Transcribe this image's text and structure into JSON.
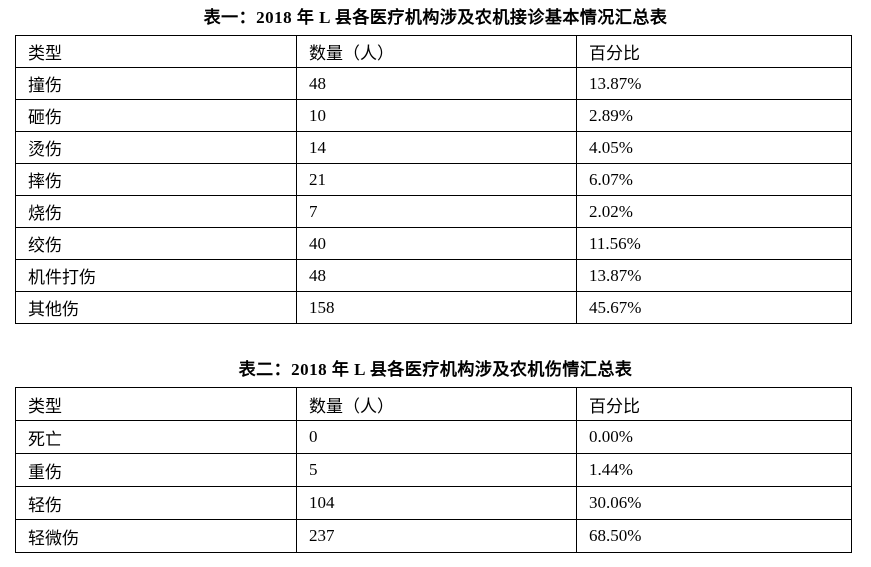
{
  "page": {
    "background_color": "#ffffff",
    "text_color": "#000000",
    "border_color": "#000000"
  },
  "tables": [
    {
      "title": "表一：2018 年 L 县各医疗机构涉及农机接诊基本情况汇总表",
      "headers": [
        "类型",
        "数量（人）",
        "百分比"
      ],
      "rows": [
        [
          "撞伤",
          "48",
          "13.87%"
        ],
        [
          "砸伤",
          "10",
          "2.89%"
        ],
        [
          "烫伤",
          "14",
          "4.05%"
        ],
        [
          "摔伤",
          "21",
          "6.07%"
        ],
        [
          "烧伤",
          "7",
          "2.02%"
        ],
        [
          "绞伤",
          "40",
          "11.56%"
        ],
        [
          "机件打伤",
          "48",
          "13.87%"
        ],
        [
          "其他伤",
          "158",
          "45.67%"
        ]
      ]
    },
    {
      "title": "表二：2018 年 L 县各医疗机构涉及农机伤情汇总表",
      "headers": [
        "类型",
        "数量（人）",
        "百分比"
      ],
      "rows": [
        [
          "死亡",
          "0",
          "0.00%"
        ],
        [
          "重伤",
          "5",
          "1.44%"
        ],
        [
          "轻伤",
          "104",
          "30.06%"
        ],
        [
          "轻微伤",
          "237",
          "68.50%"
        ]
      ]
    }
  ]
}
